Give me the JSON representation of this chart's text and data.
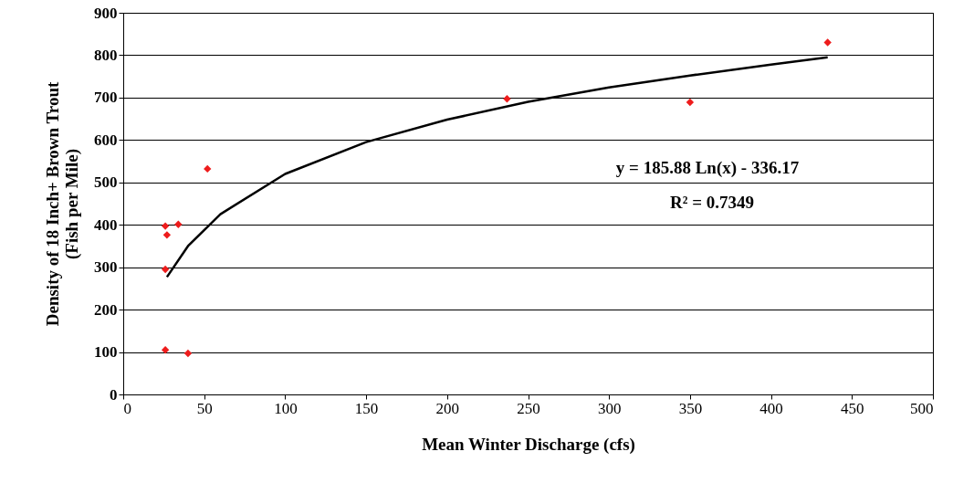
{
  "chart_data": {
    "type": "scatter",
    "xlabel": "Mean Winter Discharge (cfs)",
    "ylabel": "Density of 18 Inch+ Brown Trout\n(Fish per Mile)",
    "series": [
      {
        "type": "scatter",
        "color": "#ee1c1c",
        "marker": "diamond",
        "x": [
          26,
          27,
          34,
          26,
          26,
          40,
          52,
          237,
          350,
          435
        ],
        "values": [
          397,
          376,
          401,
          295,
          105,
          97,
          532,
          697,
          689,
          830
        ]
      },
      {
        "type": "line",
        "color": "#000000",
        "line_style": "solid",
        "x": [
          27,
          40,
          60,
          100,
          150,
          200,
          250,
          300,
          350,
          400,
          435
        ],
        "values": [
          277,
          350,
          425,
          520,
          595,
          648,
          690,
          724,
          752,
          778,
          795
        ]
      }
    ],
    "xlim": [
      0,
      500
    ],
    "xticks": [
      0,
      50,
      100,
      150,
      200,
      250,
      300,
      350,
      400,
      450,
      500
    ],
    "ylim": [
      0,
      900
    ],
    "yticks": [
      0,
      100,
      200,
      300,
      400,
      500,
      600,
      700,
      800,
      900
    ],
    "grid": "y",
    "legend": false,
    "annotations": [
      "y = 185.88 Ln(x) - 336.17",
      "R² = 0.7349"
    ]
  }
}
